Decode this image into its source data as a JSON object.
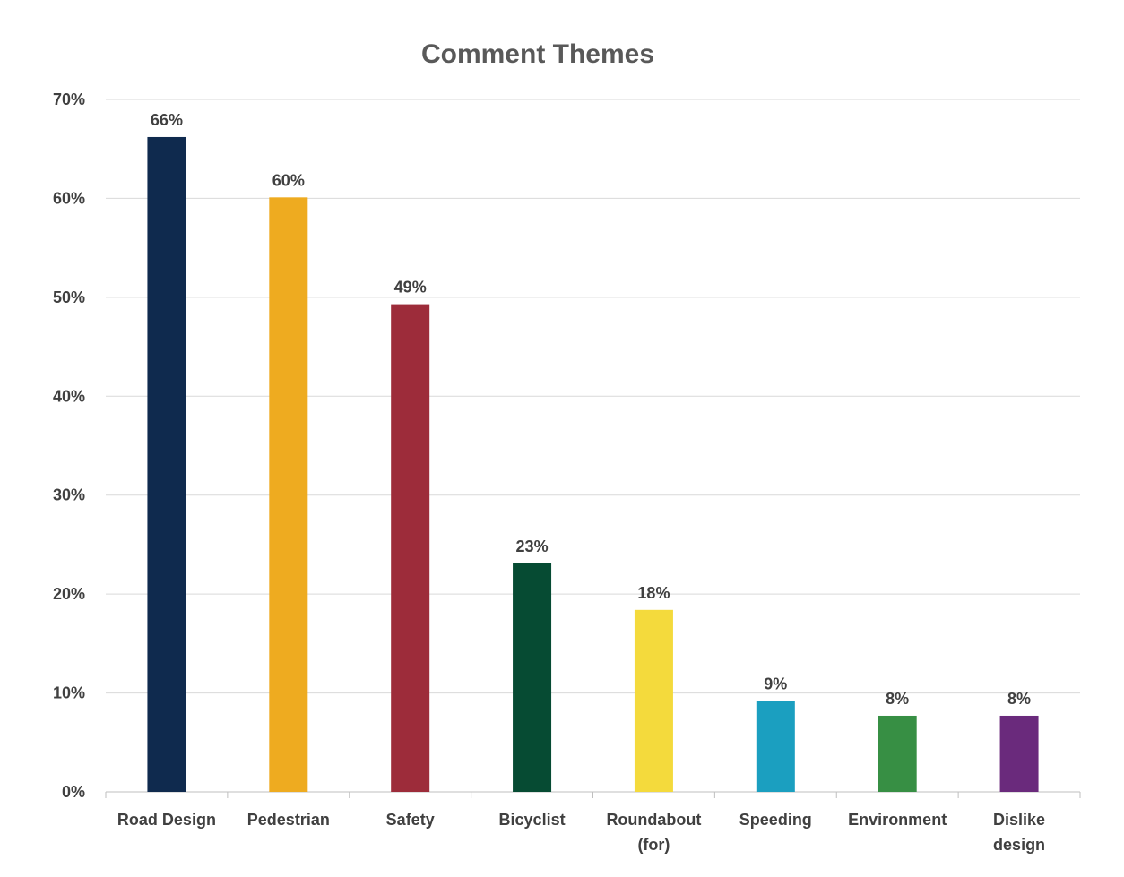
{
  "chart_data": {
    "type": "bar",
    "title": "Comment Themes",
    "xlabel": "",
    "ylabel": "",
    "ylim": [
      0,
      70
    ],
    "y_ticks": [
      "0%",
      "10%",
      "20%",
      "30%",
      "40%",
      "50%",
      "60%",
      "70%"
    ],
    "y_tick_values": [
      0,
      10,
      20,
      30,
      40,
      50,
      60,
      70
    ],
    "grid": true,
    "legend": "none",
    "categories": [
      [
        "Road Design"
      ],
      [
        "Pedestrian"
      ],
      [
        "Safety"
      ],
      [
        "Bicyclist"
      ],
      [
        "Roundabout",
        "(for)"
      ],
      [
        "Speeding"
      ],
      [
        "Environment"
      ],
      [
        "Dislike",
        "design"
      ]
    ],
    "values": [
      66.2,
      60.1,
      49.3,
      23.1,
      18.4,
      9.2,
      7.7,
      7.7
    ],
    "data_labels": [
      "66%",
      "60%",
      "49%",
      "23%",
      "18%",
      "9%",
      "8%",
      "8%"
    ],
    "colors": [
      "#0f2a4e",
      "#eeab20",
      "#9d2c3a",
      "#064b33",
      "#f4da3c",
      "#1b9fc0",
      "#378f44",
      "#6a2a7c"
    ]
  }
}
